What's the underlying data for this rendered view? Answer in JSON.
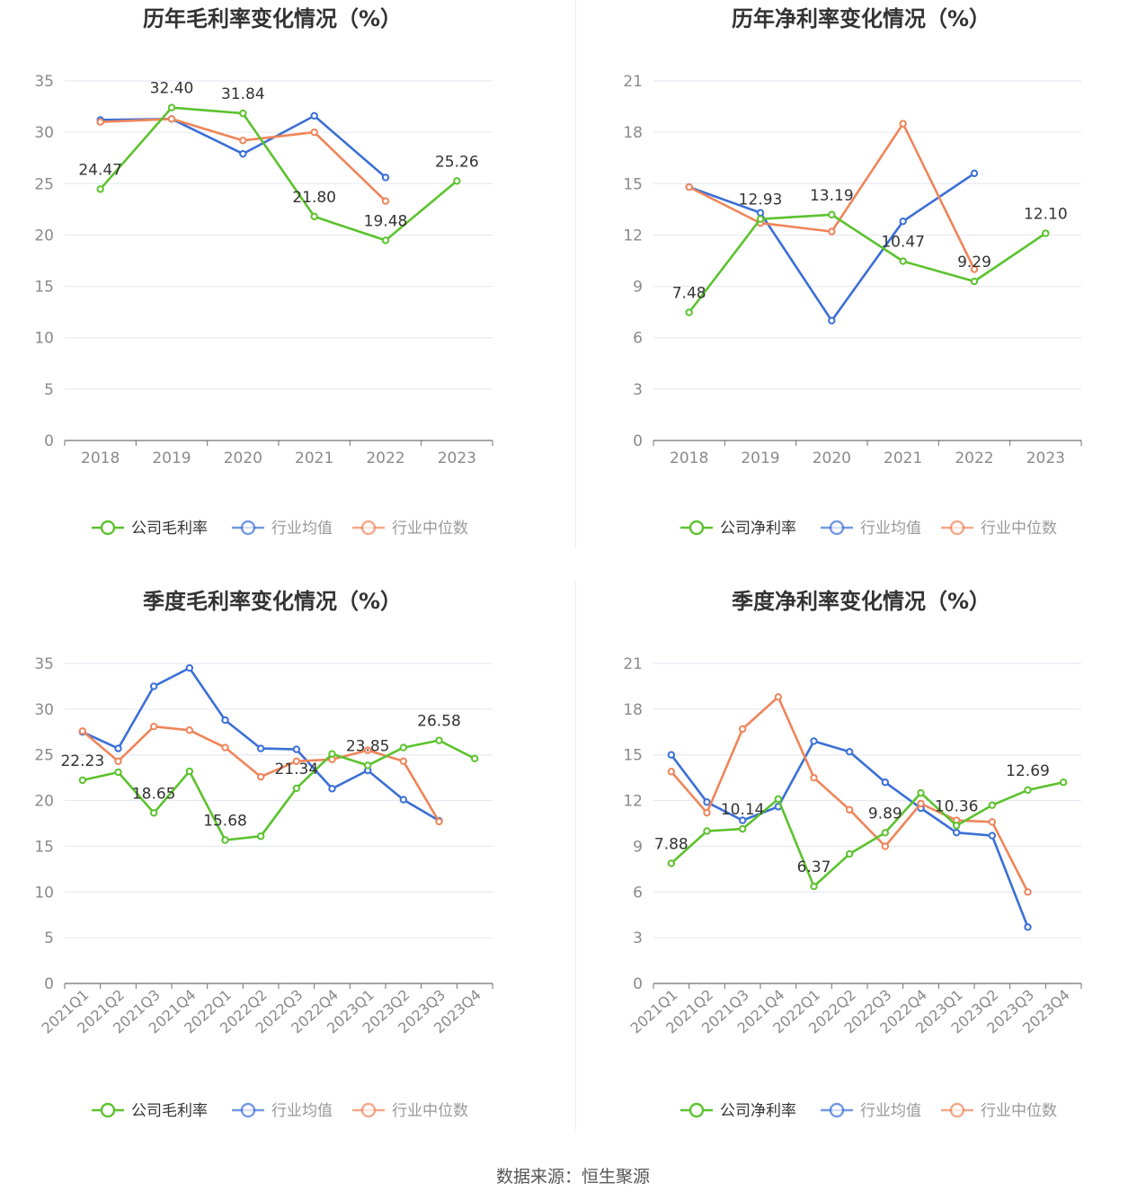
{
  "source_text": "数据来源：恒生聚源",
  "colors": {
    "company": "#5cc22e",
    "avg": "#3b6fd6",
    "median": "#ef855a",
    "grid": "#e3e6f0",
    "axis": "#6e7079",
    "tick_text": "#8a8a8a",
    "title": "#333333"
  },
  "chart_data": [
    {
      "type": "line",
      "title": "历年毛利率变化情况（%）",
      "categories": [
        "2018",
        "2019",
        "2020",
        "2021",
        "2022",
        "2023"
      ],
      "ylim": [
        0,
        35
      ],
      "yticks": [
        0,
        5,
        10,
        15,
        20,
        25,
        30,
        35
      ],
      "grid": true,
      "legend_position": "bottom",
      "series": [
        {
          "name": "公司毛利率",
          "key": "company",
          "values": [
            24.47,
            32.4,
            31.84,
            21.8,
            19.48,
            25.26
          ],
          "labels": [
            "24.47",
            "32.40",
            "31.84",
            "21.80",
            "19.48",
            "25.26"
          ]
        },
        {
          "name": "行业均值",
          "key": "avg",
          "values": [
            31.2,
            31.3,
            27.9,
            31.6,
            25.6,
            null
          ]
        },
        {
          "name": "行业中位数",
          "key": "median",
          "values": [
            31.0,
            31.3,
            29.2,
            30.0,
            23.3,
            null
          ]
        }
      ]
    },
    {
      "type": "line",
      "title": "历年净利率变化情况（%）",
      "categories": [
        "2018",
        "2019",
        "2020",
        "2021",
        "2022",
        "2023"
      ],
      "ylim": [
        0,
        21
      ],
      "yticks": [
        0,
        3,
        6,
        9,
        12,
        15,
        18,
        21
      ],
      "grid": true,
      "legend_position": "bottom",
      "series": [
        {
          "name": "公司净利率",
          "key": "company",
          "values": [
            7.48,
            12.93,
            13.19,
            10.47,
            9.29,
            12.1
          ],
          "labels": [
            "7.48",
            "12.93",
            "13.19",
            "10.47",
            "9.29",
            "12.10"
          ]
        },
        {
          "name": "行业均值",
          "key": "avg",
          "values": [
            14.8,
            13.3,
            7.0,
            12.8,
            15.6,
            null
          ]
        },
        {
          "name": "行业中位数",
          "key": "median",
          "values": [
            14.8,
            12.7,
            12.2,
            18.5,
            10.0,
            null
          ]
        }
      ]
    },
    {
      "type": "line",
      "title": "季度毛利率变化情况（%）",
      "categories": [
        "2021Q1",
        "2021Q2",
        "2021Q3",
        "2021Q4",
        "2022Q1",
        "2022Q2",
        "2022Q3",
        "2022Q4",
        "2023Q1",
        "2023Q2",
        "2023Q3",
        "2023Q4"
      ],
      "ylim": [
        0,
        35
      ],
      "yticks": [
        0,
        5,
        10,
        15,
        20,
        25,
        30,
        35
      ],
      "grid": true,
      "rotate_x_labels": true,
      "legend_position": "bottom",
      "series": [
        {
          "name": "公司毛利率",
          "key": "company",
          "values": [
            22.23,
            23.1,
            18.65,
            23.2,
            15.68,
            16.1,
            21.34,
            25.1,
            23.85,
            25.8,
            26.58,
            24.6
          ],
          "labels": [
            "22.23",
            "",
            "18.65",
            "",
            "15.68",
            "",
            "21.34",
            "",
            "23.85",
            "",
            "26.58",
            ""
          ]
        },
        {
          "name": "行业均值",
          "key": "avg",
          "values": [
            27.5,
            25.7,
            32.5,
            34.5,
            28.8,
            25.7,
            25.6,
            21.3,
            23.3,
            20.1,
            17.8,
            null
          ]
        },
        {
          "name": "行业中位数",
          "key": "median",
          "values": [
            27.6,
            24.3,
            28.1,
            27.7,
            25.8,
            22.6,
            24.3,
            24.5,
            25.5,
            24.3,
            17.7,
            null
          ]
        }
      ]
    },
    {
      "type": "line",
      "title": "季度净利率变化情况（%）",
      "categories": [
        "2021Q1",
        "2021Q2",
        "2021Q3",
        "2021Q4",
        "2022Q1",
        "2022Q2",
        "2022Q3",
        "2022Q4",
        "2023Q1",
        "2023Q2",
        "2023Q3",
        "2023Q4"
      ],
      "ylim": [
        0,
        21
      ],
      "yticks": [
        0,
        3,
        6,
        9,
        12,
        15,
        18,
        21
      ],
      "grid": true,
      "rotate_x_labels": true,
      "legend_position": "bottom",
      "series": [
        {
          "name": "公司净利率",
          "key": "company",
          "values": [
            7.88,
            10.0,
            10.14,
            12.1,
            6.37,
            8.5,
            9.89,
            12.5,
            10.36,
            11.7,
            12.69,
            13.2
          ],
          "labels": [
            "7.88",
            "",
            "10.14",
            "",
            "6.37",
            "",
            "9.89",
            "",
            "10.36",
            "",
            "12.69",
            ""
          ]
        },
        {
          "name": "行业均值",
          "key": "avg",
          "values": [
            15.0,
            11.9,
            10.7,
            11.6,
            15.9,
            15.2,
            13.2,
            11.5,
            9.9,
            9.7,
            3.7,
            null
          ]
        },
        {
          "name": "行业中位数",
          "key": "median",
          "values": [
            13.9,
            11.2,
            16.7,
            18.8,
            13.5,
            11.4,
            9.0,
            11.8,
            10.7,
            10.6,
            6.0,
            null
          ]
        }
      ]
    }
  ]
}
